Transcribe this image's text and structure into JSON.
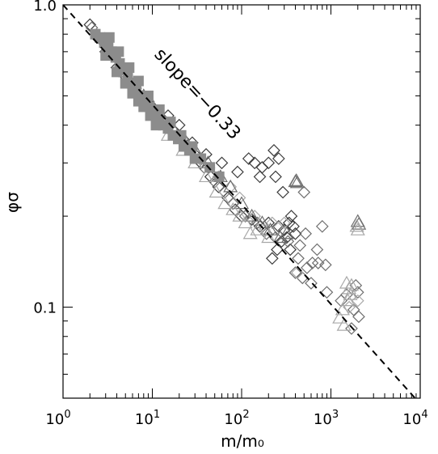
{
  "chart_data": {
    "type": "scatter",
    "title": "",
    "xlabel": "m/m₀",
    "ylabel": "φσ",
    "xscale": "log",
    "yscale": "log",
    "xlim": [
      1,
      10000
    ],
    "ylim": [
      0.05,
      1.0
    ],
    "xticks": [
      {
        "value": 1,
        "base": "10",
        "exp": "0"
      },
      {
        "value": 10,
        "base": "10",
        "exp": "1"
      },
      {
        "value": 100,
        "base": "10",
        "exp": "2"
      },
      {
        "value": 1000,
        "base": "10",
        "exp": "3"
      },
      {
        "value": 10000,
        "base": "10",
        "exp": "4"
      }
    ],
    "yticks": [
      {
        "value": 0.1,
        "label": "0.1"
      },
      {
        "value": 1.0,
        "label": "1.0"
      }
    ],
    "grid": false,
    "legend": "none",
    "reference_line": {
      "style": "dashed",
      "label": "slope=−0.33",
      "slope": -0.33,
      "intercept_at_x1": 1.0
    },
    "colors": {
      "dark": "#3c3c3c",
      "mid": "#6e6e6e",
      "light": "#a8a8a8",
      "fill": "#8c8c8c"
    },
    "series": [
      {
        "marker": "diamond",
        "color": "dark",
        "points": [
          [
            2.0,
            0.86
          ],
          [
            2.4,
            0.78
          ],
          [
            3.0,
            0.7
          ],
          [
            4.0,
            0.62
          ],
          [
            5.0,
            0.58
          ],
          [
            6.5,
            0.53
          ],
          [
            8.0,
            0.49
          ],
          [
            10.0,
            0.46
          ],
          [
            12.0,
            0.43
          ],
          [
            15.0,
            0.4
          ],
          [
            18.0,
            0.38
          ],
          [
            22.0,
            0.36
          ],
          [
            25.0,
            0.34
          ],
          [
            30.0,
            0.32
          ],
          [
            35.0,
            0.3
          ],
          [
            45.0,
            0.27
          ],
          [
            55.0,
            0.25
          ],
          [
            70.0,
            0.23
          ],
          [
            85.0,
            0.21
          ],
          [
            100.0,
            0.2
          ],
          [
            130.0,
            0.195
          ],
          [
            160.0,
            0.185
          ],
          [
            200.0,
            0.19
          ],
          [
            260.0,
            0.185
          ],
          [
            300.0,
            0.18
          ],
          [
            340.0,
            0.19
          ],
          [
            360.0,
            0.2
          ],
          [
            380.0,
            0.185
          ],
          [
            400.0,
            0.175
          ],
          [
            280.0,
            0.165
          ],
          [
            320.0,
            0.17
          ],
          [
            250.0,
            0.155
          ],
          [
            220.0,
            0.145
          ],
          [
            350.0,
            0.155
          ],
          [
            230.0,
            0.33
          ],
          [
            260.0,
            0.31
          ],
          [
            200.0,
            0.3
          ],
          [
            170.0,
            0.29
          ],
          [
            140.0,
            0.3
          ],
          [
            290.0,
            0.24
          ],
          [
            240.0,
            0.27
          ],
          [
            160.0,
            0.27
          ],
          [
            120.0,
            0.31
          ],
          [
            90.0,
            0.28
          ],
          [
            60.0,
            0.3
          ],
          [
            40.0,
            0.32
          ],
          [
            28.0,
            0.35
          ],
          [
            20.0,
            0.4
          ],
          [
            15.0,
            0.43
          ]
        ]
      },
      {
        "marker": "diamond",
        "color": "mid",
        "points": [
          [
            2.1,
            0.84
          ],
          [
            2.6,
            0.77
          ],
          [
            3.3,
            0.69
          ],
          [
            4.5,
            0.61
          ],
          [
            6.0,
            0.55
          ],
          [
            9.0,
            0.48
          ],
          [
            13.0,
            0.42
          ],
          [
            19.0,
            0.37
          ],
          [
            27.0,
            0.33
          ],
          [
            38.0,
            0.29
          ],
          [
            50.0,
            0.26
          ],
          [
            65.0,
            0.24
          ],
          [
            80.0,
            0.22
          ],
          [
            110.0,
            0.2
          ],
          [
            150.0,
            0.19
          ],
          [
            190.0,
            0.175
          ],
          [
            240.0,
            0.17
          ],
          [
            330.0,
            0.165
          ],
          [
            450.0,
            0.16
          ],
          [
            500.0,
            0.24
          ],
          [
            520.0,
            0.175
          ],
          [
            430.0,
            0.145
          ],
          [
            540.0,
            0.135
          ],
          [
            620.0,
            0.14
          ],
          [
            700.0,
            0.155
          ],
          [
            800.0,
            0.185
          ],
          [
            720.0,
            0.14
          ],
          [
            870.0,
            0.138
          ],
          [
            600.0,
            0.12
          ],
          [
            900.0,
            0.112
          ],
          [
            1300.0,
            0.105
          ],
          [
            1500.0,
            0.11
          ],
          [
            1800.0,
            0.098
          ],
          [
            1900.0,
            0.118
          ],
          [
            2000.0,
            0.112
          ],
          [
            2050.0,
            0.093
          ],
          [
            1700.0,
            0.085
          ],
          [
            400.0,
            0.13
          ],
          [
            480.0,
            0.125
          ]
        ]
      },
      {
        "marker": "diamond",
        "color": "light",
        "points": [
          [
            25.0,
            0.34
          ],
          [
            35.0,
            0.31
          ],
          [
            55.0,
            0.27
          ],
          [
            75.0,
            0.25
          ],
          [
            95.0,
            0.23
          ],
          [
            140.0,
            0.2
          ],
          [
            180.0,
            0.18
          ],
          [
            220.0,
            0.19
          ],
          [
            300.0,
            0.19
          ],
          [
            420.0,
            0.13
          ],
          [
            1600.0,
            0.1
          ],
          [
            2000.0,
            0.105
          ]
        ]
      },
      {
        "marker": "triangle",
        "color": "mid",
        "points": [
          [
            5.0,
            0.6
          ],
          [
            8.0,
            0.5
          ],
          [
            12.0,
            0.44
          ],
          [
            17.0,
            0.39
          ],
          [
            24.0,
            0.35
          ],
          [
            32.0,
            0.32
          ],
          [
            42.0,
            0.3
          ],
          [
            58.0,
            0.27
          ],
          [
            75.0,
            0.25
          ],
          [
            100.0,
            0.22
          ],
          [
            130.0,
            0.2
          ],
          [
            170.0,
            0.19
          ],
          [
            210.0,
            0.18
          ],
          [
            270.0,
            0.17
          ],
          [
            320.0,
            0.175
          ],
          [
            400.0,
            0.26
          ],
          [
            410.0,
            0.262
          ],
          [
            420.0,
            0.258
          ],
          [
            2000.0,
            0.192
          ],
          [
            2060.0,
            0.188
          ]
        ]
      },
      {
        "marker": "triangle",
        "color": "light",
        "points": [
          [
            15.0,
            0.37
          ],
          [
            22.0,
            0.33
          ],
          [
            30.0,
            0.3
          ],
          [
            40.0,
            0.27
          ],
          [
            52.0,
            0.24
          ],
          [
            65.0,
            0.22
          ],
          [
            80.0,
            0.21
          ],
          [
            95.0,
            0.2
          ],
          [
            110.0,
            0.19
          ],
          [
            125.0,
            0.175
          ],
          [
            150.0,
            0.18
          ],
          [
            200.0,
            0.17
          ],
          [
            1500.0,
            0.12
          ],
          [
            1600.0,
            0.115
          ],
          [
            1550.0,
            0.105
          ],
          [
            1350.0,
            0.098
          ],
          [
            1250.0,
            0.092
          ],
          [
            1400.0,
            0.087
          ],
          [
            1950.0,
            0.185
          ],
          [
            2000.0,
            0.18
          ],
          [
            1700.0,
            0.118
          ],
          [
            1650.0,
            0.11
          ]
        ]
      },
      {
        "marker": "filled-square",
        "color": "fill",
        "points": [
          [
            2.3,
            0.8
          ],
          [
            2.6,
            0.78
          ],
          [
            2.9,
            0.75
          ],
          [
            3.2,
            0.73
          ],
          [
            3.5,
            0.7
          ],
          [
            3.9,
            0.67
          ],
          [
            4.3,
            0.64
          ],
          [
            4.8,
            0.61
          ],
          [
            5.3,
            0.58
          ],
          [
            5.9,
            0.55
          ],
          [
            6.6,
            0.53
          ],
          [
            7.4,
            0.5
          ],
          [
            8.3,
            0.48
          ],
          [
            9.3,
            0.46
          ],
          [
            10.5,
            0.44
          ],
          [
            11.8,
            0.42
          ],
          [
            13.3,
            0.4
          ],
          [
            15.0,
            0.39
          ],
          [
            17.0,
            0.37
          ],
          [
            19.5,
            0.36
          ],
          [
            22.5,
            0.34
          ],
          [
            26.0,
            0.33
          ],
          [
            30.0,
            0.31
          ],
          [
            3.0,
            0.68
          ],
          [
            4.0,
            0.6
          ],
          [
            5.0,
            0.55
          ],
          [
            6.0,
            0.51
          ],
          [
            7.0,
            0.48
          ],
          [
            8.0,
            0.46
          ],
          [
            9.5,
            0.43
          ],
          [
            11.0,
            0.4
          ],
          [
            3.3,
            0.78
          ],
          [
            4.2,
            0.7
          ],
          [
            5.5,
            0.62
          ],
          [
            7.0,
            0.56
          ],
          [
            9.0,
            0.5
          ],
          [
            12.0,
            0.45
          ],
          [
            16.0,
            0.41
          ],
          [
            21.0,
            0.37
          ],
          [
            28.0,
            0.34
          ],
          [
            35.0,
            0.31
          ],
          [
            44.0,
            0.29
          ],
          [
            56.0,
            0.27
          ]
        ]
      }
    ]
  }
}
